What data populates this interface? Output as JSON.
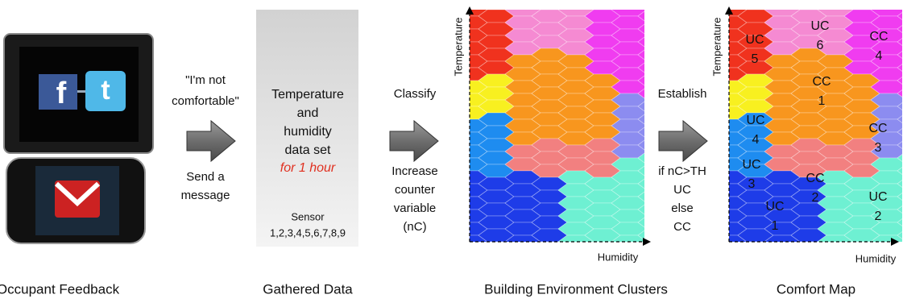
{
  "feedback": {
    "request": [
      "\"I'm not",
      "comfortable\""
    ],
    "action": [
      "Send a",
      "message"
    ],
    "caption": "Occupant Feedback"
  },
  "data_set": {
    "lines": [
      "Temperature",
      "and",
      "humidity",
      "data set"
    ],
    "duration": "for 1 hour",
    "sensor_title": "Sensor",
    "sensor_ids": "1,2,3,4,5,6,7,8,9",
    "caption": "Gathered Data"
  },
  "classify": {
    "label": "Classify",
    "action": [
      "Increase",
      "counter",
      "variable",
      "(nC)"
    ]
  },
  "clusters": {
    "y_axis": "Temperature",
    "x_axis": "Humidity",
    "caption": "Building Environment Clusters"
  },
  "establish": {
    "label": "Establish",
    "rule": [
      "if nC>TH",
      "UC",
      "else",
      "CC"
    ]
  },
  "comfort_map": {
    "y_axis": "Temperature",
    "x_axis": "Humidity",
    "caption": "Comfort Map",
    "regions": [
      [
        "UC",
        "5"
      ],
      [
        "UC",
        "6"
      ],
      [
        "CC",
        "4"
      ],
      [
        "CC",
        "1"
      ],
      [
        "UC",
        "4"
      ],
      [
        "CC",
        "3"
      ],
      [
        "UC",
        "3"
      ],
      [
        "CC",
        "2"
      ],
      [
        "UC",
        "1"
      ],
      [
        "UC",
        "2"
      ]
    ]
  }
}
